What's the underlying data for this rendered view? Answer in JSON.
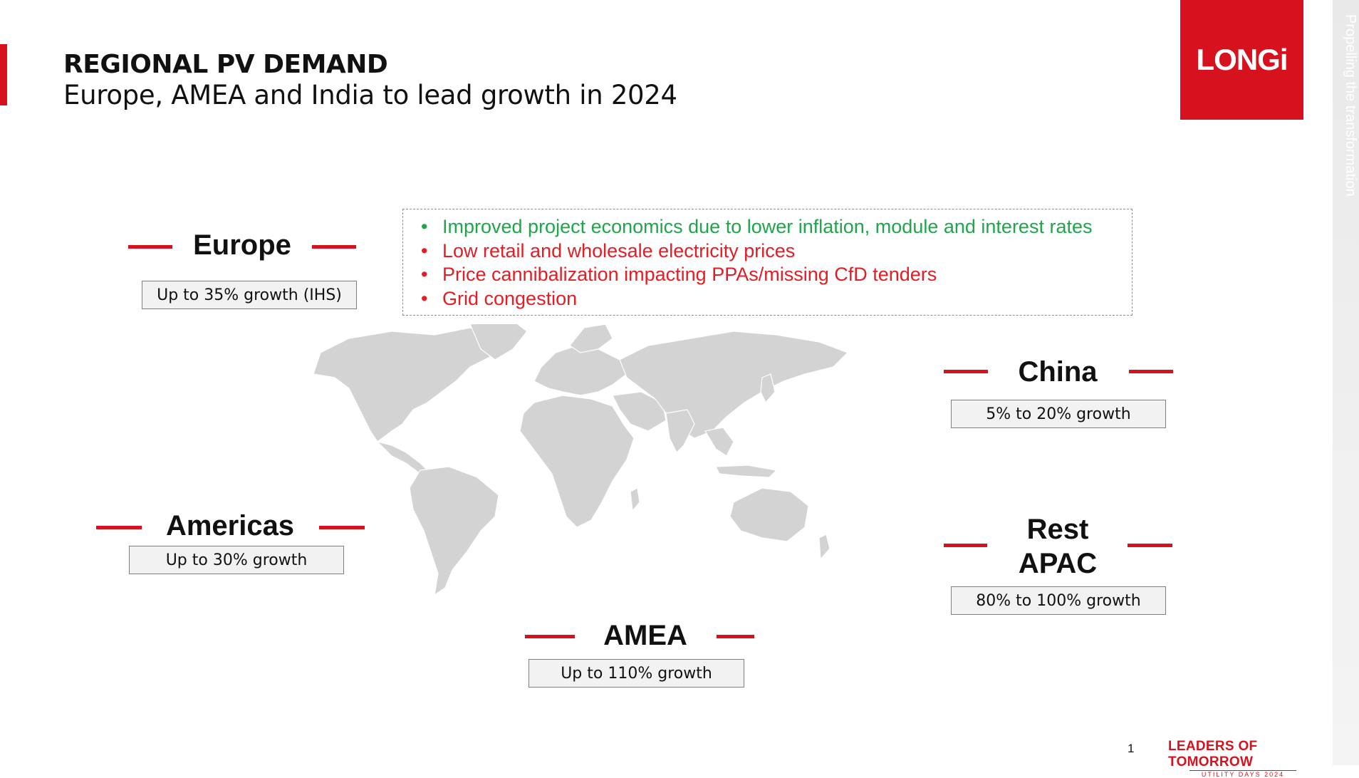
{
  "header": {
    "title": "REGIONAL PV DEMAND",
    "subtitle": "Europe, AMEA and India to lead growth in 2024"
  },
  "logo_text": "LONGi",
  "side_text": "Propelling the transformation",
  "callout": {
    "items": [
      {
        "text": "Improved project economics due to lower inflation, module and interest rates",
        "color": "#1fa64a"
      },
      {
        "text": "Low retail and wholesale electricity prices",
        "color": "#e41d25"
      },
      {
        "text": "Price cannibalization impacting PPAs/missing CfD tenders",
        "color": "#e41d25"
      },
      {
        "text": "Grid congestion",
        "color": "#e41d25"
      }
    ]
  },
  "regions": {
    "europe": {
      "name": "Europe",
      "growth": "Up to 35% growth (IHS)"
    },
    "china": {
      "name": "China",
      "growth": "5% to 20% growth"
    },
    "americas": {
      "name": "Americas",
      "growth": "Up to 30% growth"
    },
    "rest_apac": {
      "name_line1": "Rest",
      "name_line2": "APAC",
      "growth": "80% to 100% growth"
    },
    "amea": {
      "name": "AMEA",
      "growth": "Up to 110% growth"
    }
  },
  "footer": {
    "page_number": "1",
    "event_main": "LEADERS OF TOMORROW",
    "event_sub": "UTILITY DAYS 2024"
  },
  "colors": {
    "brand_red": "#d7121f",
    "map_gray": "#d3d3d3"
  }
}
